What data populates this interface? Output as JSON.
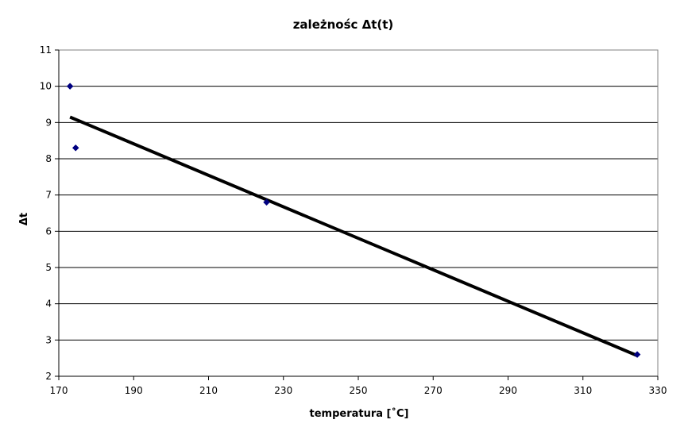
{
  "chart_data": {
    "type": "scatter",
    "title": "zależnośc Δt(t)",
    "xlabel": "temperatura [˚C]",
    "ylabel": "Δt",
    "xlim": [
      170,
      330
    ],
    "ylim": [
      2,
      11
    ],
    "xticks": [
      170,
      190,
      210,
      230,
      250,
      270,
      290,
      310,
      330
    ],
    "yticks": [
      2,
      3,
      4,
      5,
      6,
      7,
      8,
      9,
      10,
      11
    ],
    "grid": "horizontal",
    "legend": "none",
    "series": [
      {
        "marker": "diamond",
        "color": "#000080",
        "points": [
          {
            "x": 173,
            "y": 10.0
          },
          {
            "x": 174.5,
            "y": 8.3
          },
          {
            "x": 225.5,
            "y": 6.8
          },
          {
            "x": 324.5,
            "y": 2.6
          }
        ]
      }
    ],
    "trendline": {
      "type": "linear",
      "color": "#000000",
      "from": {
        "x": 173,
        "y": 9.15
      },
      "to": {
        "x": 324.5,
        "y": 2.57
      }
    }
  }
}
